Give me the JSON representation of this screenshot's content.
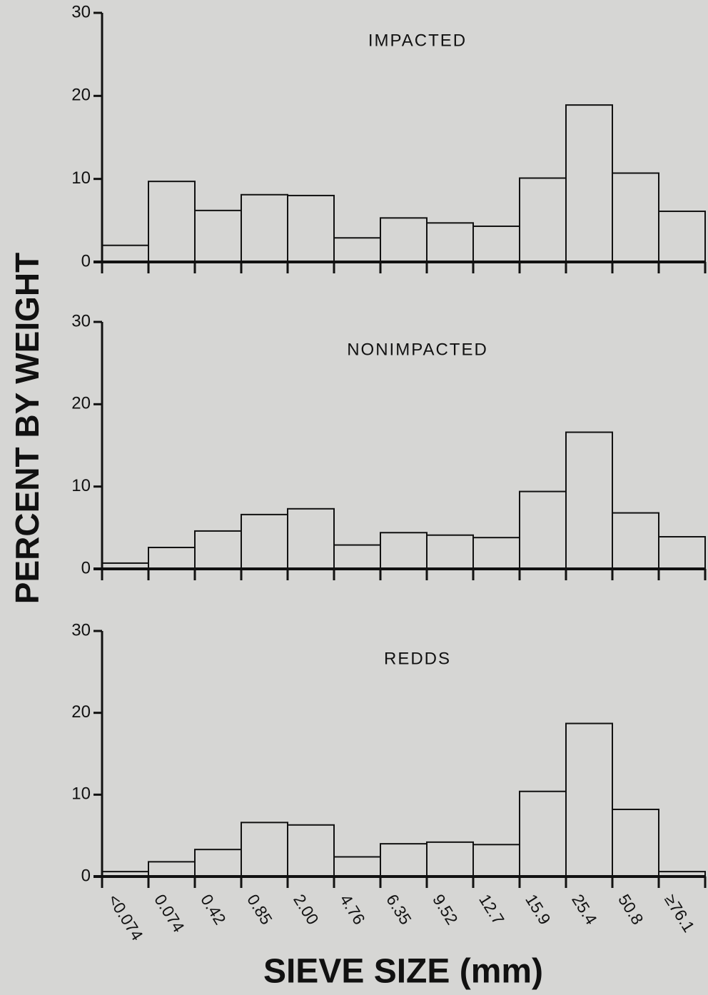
{
  "ylabel": "PERCENT BY WEIGHT",
  "xlabel": "SIEVE SIZE (mm)",
  "chart_data": [
    {
      "type": "bar",
      "title": "IMPACTED",
      "ylim": [
        0,
        30
      ],
      "yticks": [
        0,
        10,
        20,
        30
      ],
      "values": [
        2.0,
        9.7,
        6.2,
        8.1,
        8.0,
        2.9,
        5.3,
        4.7,
        4.3,
        10.1,
        18.9,
        10.7,
        6.1
      ]
    },
    {
      "type": "bar",
      "title": "NONIMPACTED",
      "ylim": [
        0,
        30
      ],
      "yticks": [
        0,
        10,
        20,
        30
      ],
      "values": [
        0.7,
        2.6,
        4.6,
        6.6,
        7.3,
        2.9,
        4.4,
        4.1,
        3.8,
        9.4,
        16.6,
        6.8,
        3.9
      ]
    },
    {
      "type": "bar",
      "title": "REDDS",
      "ylim": [
        0,
        30
      ],
      "yticks": [
        0,
        10,
        20,
        30
      ],
      "categories": [
        "<0.074",
        "0.074",
        "0.42",
        "0.85",
        "2.00",
        "4.76",
        "6.35",
        "9.52",
        "12.7",
        "15.9",
        "25.4",
        "50.8",
        "≥76.1"
      ],
      "values": [
        0.6,
        1.8,
        3.3,
        6.6,
        6.3,
        2.4,
        4.0,
        4.2,
        3.9,
        10.4,
        18.7,
        8.2,
        0.6
      ]
    }
  ]
}
